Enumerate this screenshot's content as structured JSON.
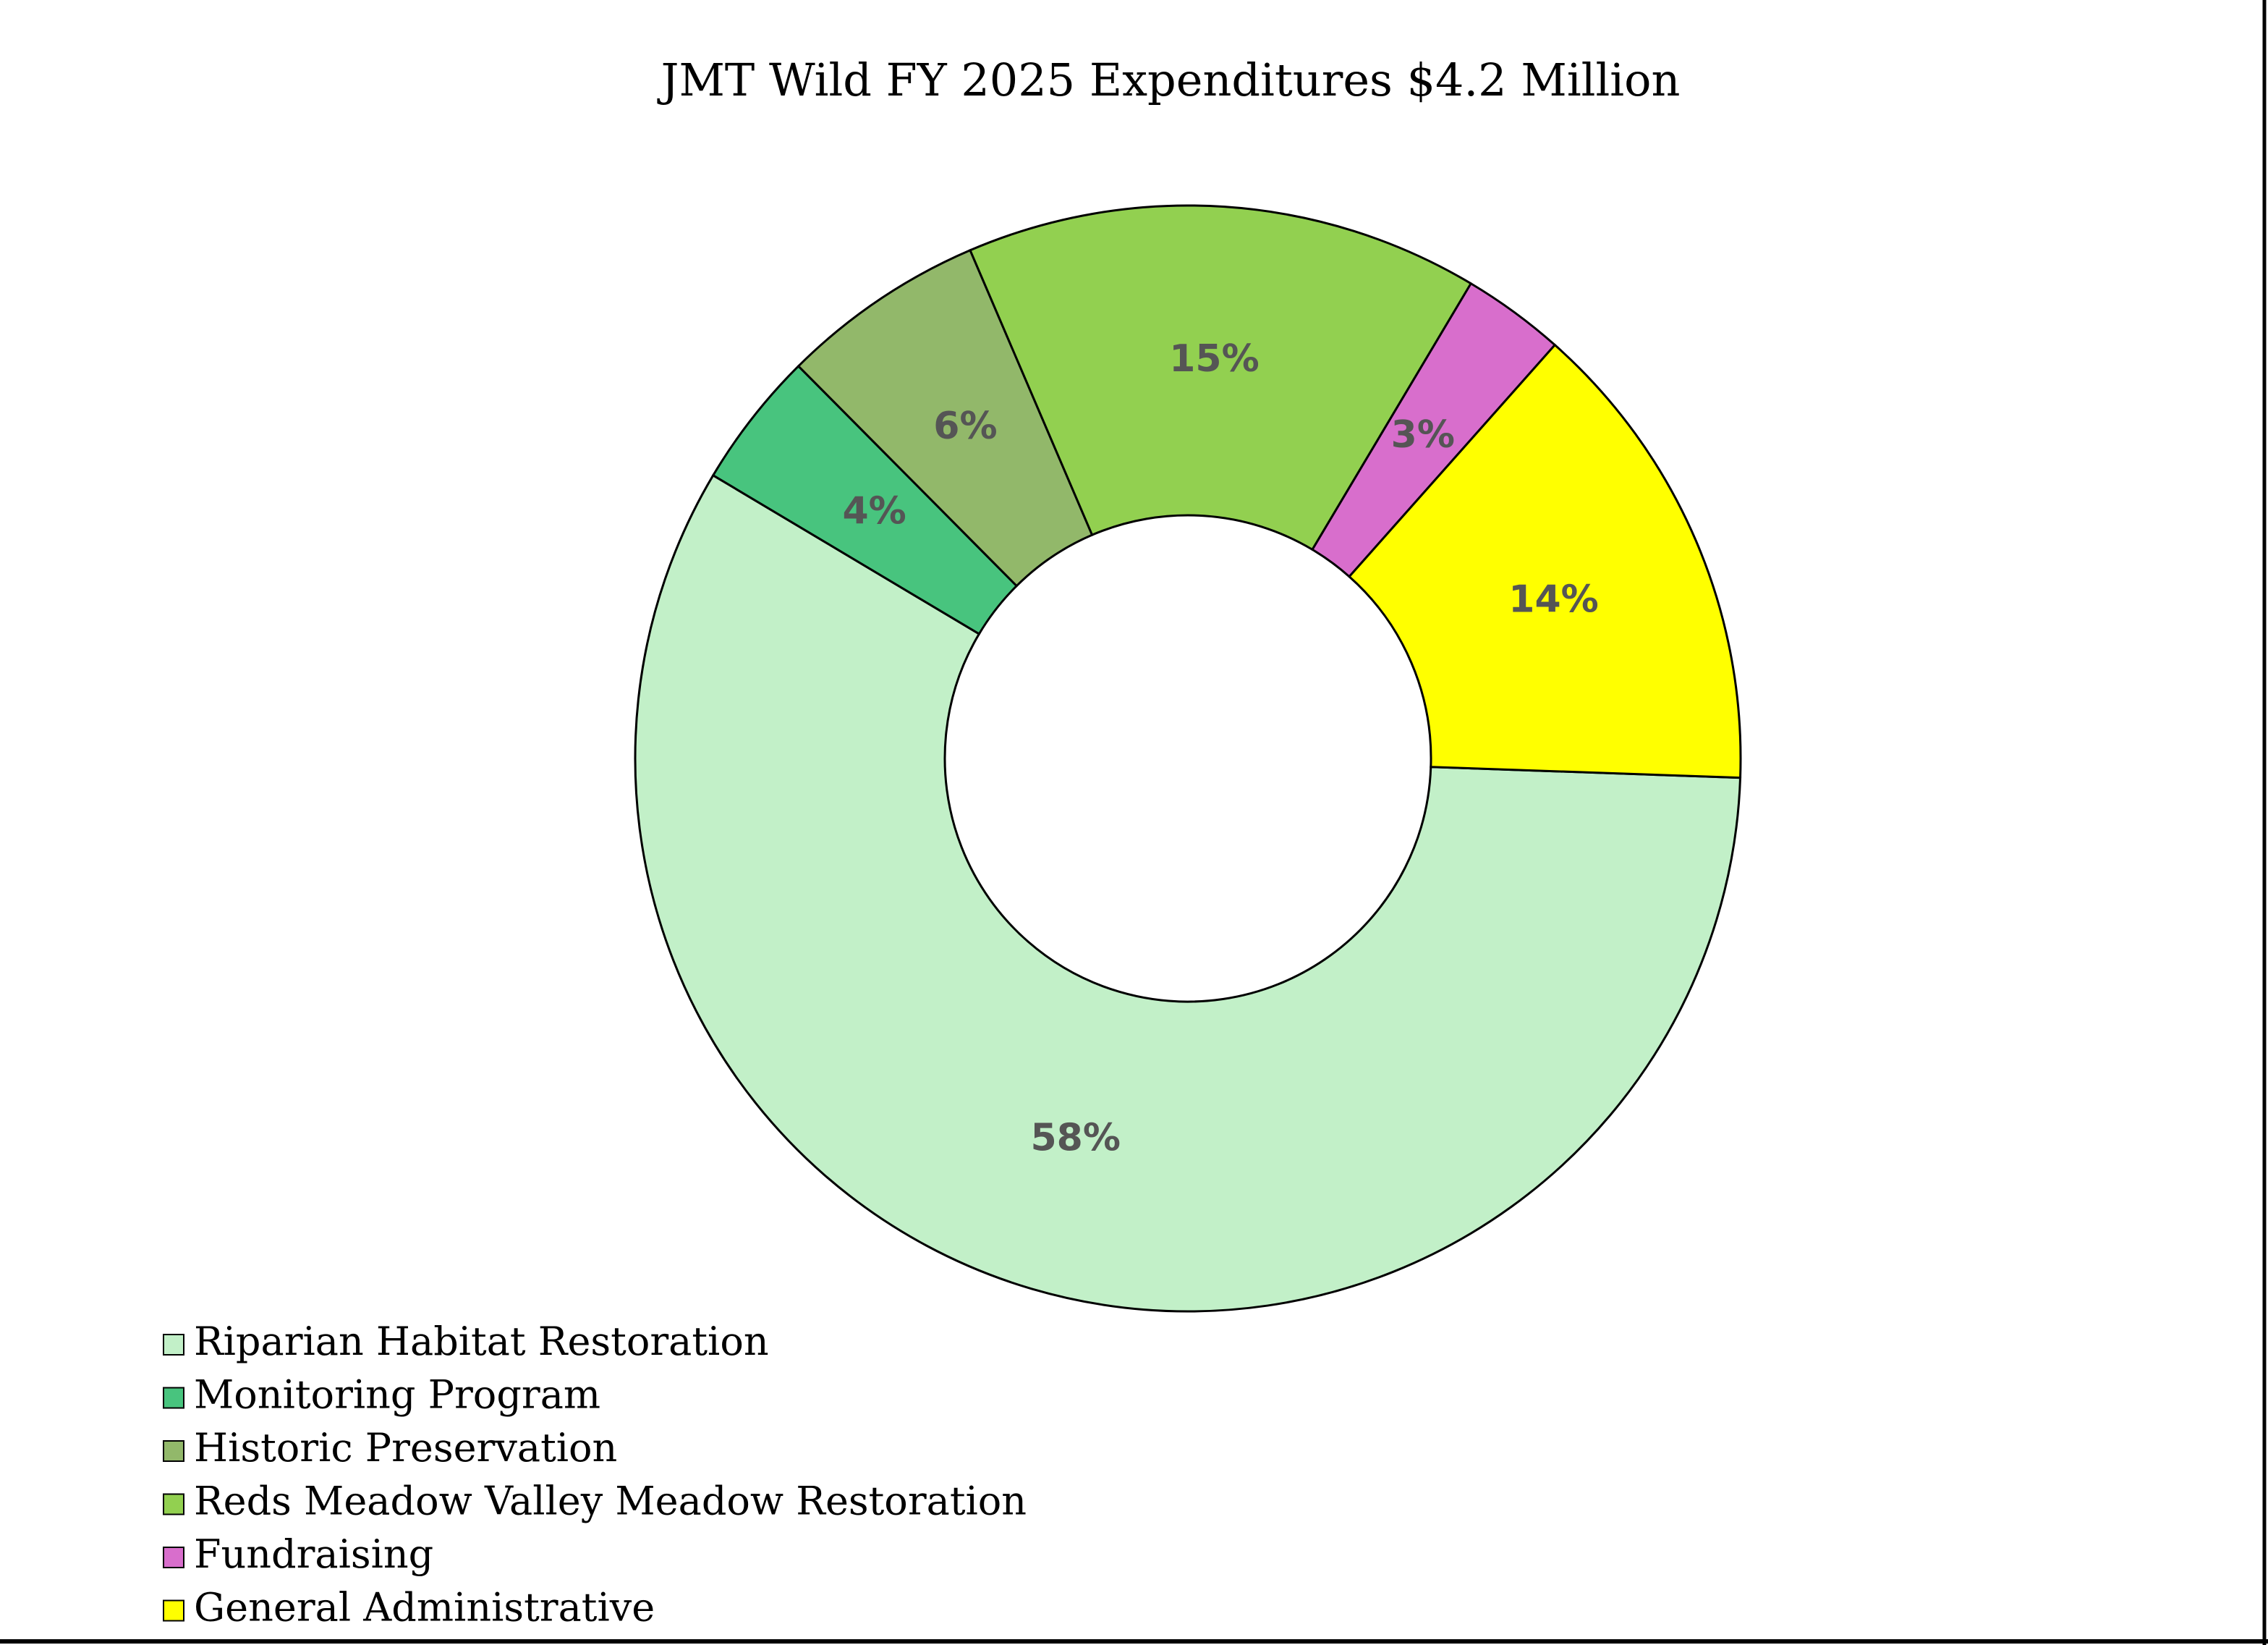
{
  "chart_data": {
    "type": "pie",
    "style": "donut",
    "title": "JMT Wild FY 2025 Expenditures $4.2 Million",
    "legend_position": "bottom-left",
    "slices": [
      {
        "name": "Riparian Habitat Restoration",
        "value": 58,
        "label": "58%",
        "color": "#c2f0c8"
      },
      {
        "name": "Monitoring Program",
        "value": 4,
        "label": "4%",
        "color": "#48c47e"
      },
      {
        "name": "Historic Preservation",
        "value": 6,
        "label": "6%",
        "color": "#92b86a"
      },
      {
        "name": "Reds Meadow Valley Meadow Restoration",
        "value": 15,
        "label": "15%",
        "color": "#92d050"
      },
      {
        "name": "Fundraising",
        "value": 3,
        "label": "3%",
        "color": "#d86ecc"
      },
      {
        "name": "General Administrative",
        "value": 14,
        "label": "14%",
        "color": "#ffff00"
      }
    ]
  }
}
